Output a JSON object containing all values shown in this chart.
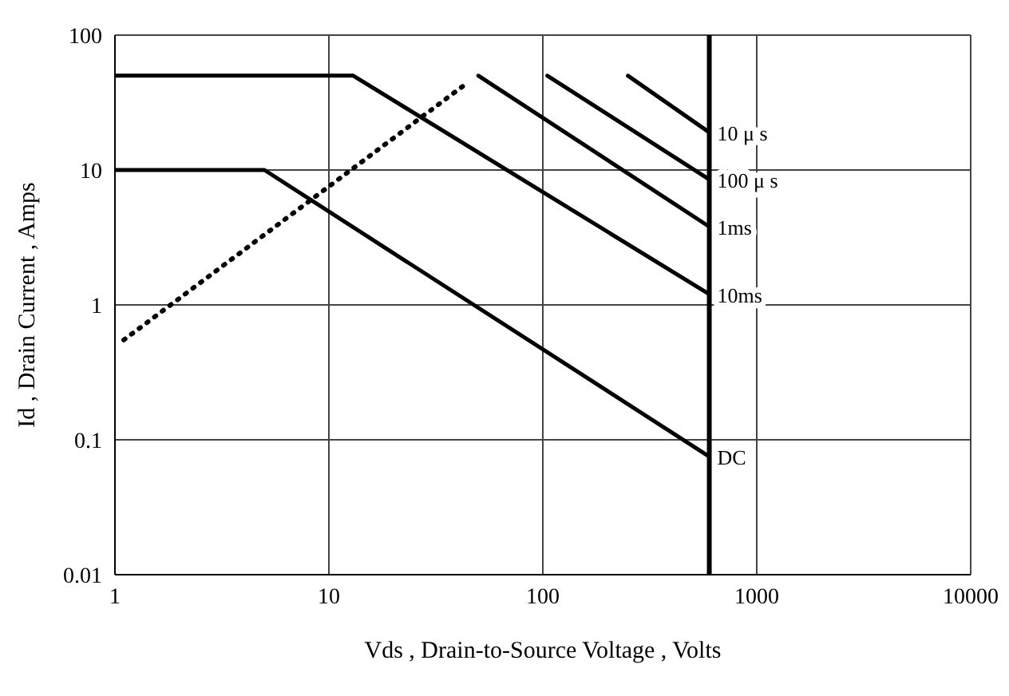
{
  "chart_data": {
    "type": "line",
    "xlabel": "Vds , Drain-to-Source Voltage , Volts",
    "ylabel": "Id , Drain Current , Amps",
    "log": "xy",
    "xlim": [
      1,
      10000
    ],
    "xticks": [
      1,
      10,
      100,
      1000,
      10000
    ],
    "ylim": [
      0.01,
      100
    ],
    "yticks": [
      0.01,
      0.1,
      1,
      10,
      100
    ],
    "grid": true,
    "legend": false,
    "marker": "none",
    "series": [
      {
        "name": "10 μ s",
        "color": "#000000",
        "x": [
          250,
          600
        ],
        "values": [
          50,
          19
        ]
      },
      {
        "name": "100 μ s",
        "color": "#000000",
        "x": [
          105,
          600
        ],
        "values": [
          50,
          8.5
        ]
      },
      {
        "name": "1ms",
        "color": "#000000",
        "x": [
          50,
          600
        ],
        "values": [
          50,
          3.8
        ]
      },
      {
        "name": "10ms",
        "color": "#000000",
        "x": [
          1,
          13,
          600
        ],
        "values": [
          50,
          50,
          1.2
        ]
      },
      {
        "name": "DC",
        "color": "#000000",
        "x": [
          1,
          5,
          600
        ],
        "values": [
          10,
          10,
          0.075
        ]
      },
      {
        "color": "#000000",
        "line_style": "dotted",
        "x": [
          1.1,
          45
        ],
        "values": [
          0.55,
          45
        ]
      }
    ],
    "ref_lines": [
      {
        "axis": "x",
        "value": 600,
        "color": "#000000"
      }
    ]
  }
}
